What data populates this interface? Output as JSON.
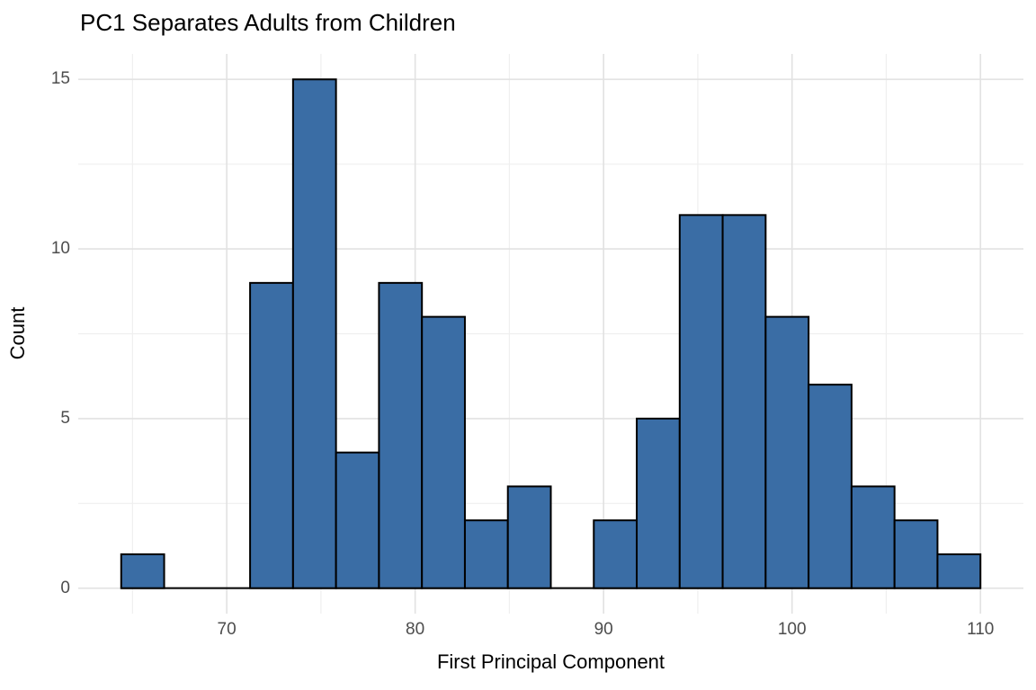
{
  "chart_data": {
    "type": "histogram",
    "title": "PC1 Separates Adults from Children",
    "xlabel": "First Principal Component",
    "ylabel": "Count",
    "bin_start": 64.4,
    "bin_width": 2.28,
    "counts": [
      1,
      0,
      0,
      9,
      15,
      4,
      9,
      8,
      2,
      3,
      0,
      2,
      5,
      11,
      11,
      8,
      6,
      3,
      2,
      1
    ],
    "total_count": 100,
    "x_ticks_major": [
      70,
      80,
      90,
      100,
      110
    ],
    "x_ticks_minor": [
      65,
      75,
      85,
      95,
      105
    ],
    "y_ticks_major": [
      0,
      5,
      10,
      15
    ],
    "y_ticks_minor": [
      2.5,
      7.5,
      12.5
    ],
    "xlim": [
      62.12,
      112.28
    ],
    "ylim": [
      -0.75,
      15.75
    ],
    "grid": true,
    "legend": "none",
    "colors": {
      "bar_fill": "#3A6DA5",
      "bar_stroke": "#000000",
      "grid_major": "#E2E2E2",
      "grid_minor": "#EFEFEF",
      "tick_label": "#4D4D4D",
      "text": "#000000",
      "background": "#FFFFFF"
    }
  }
}
